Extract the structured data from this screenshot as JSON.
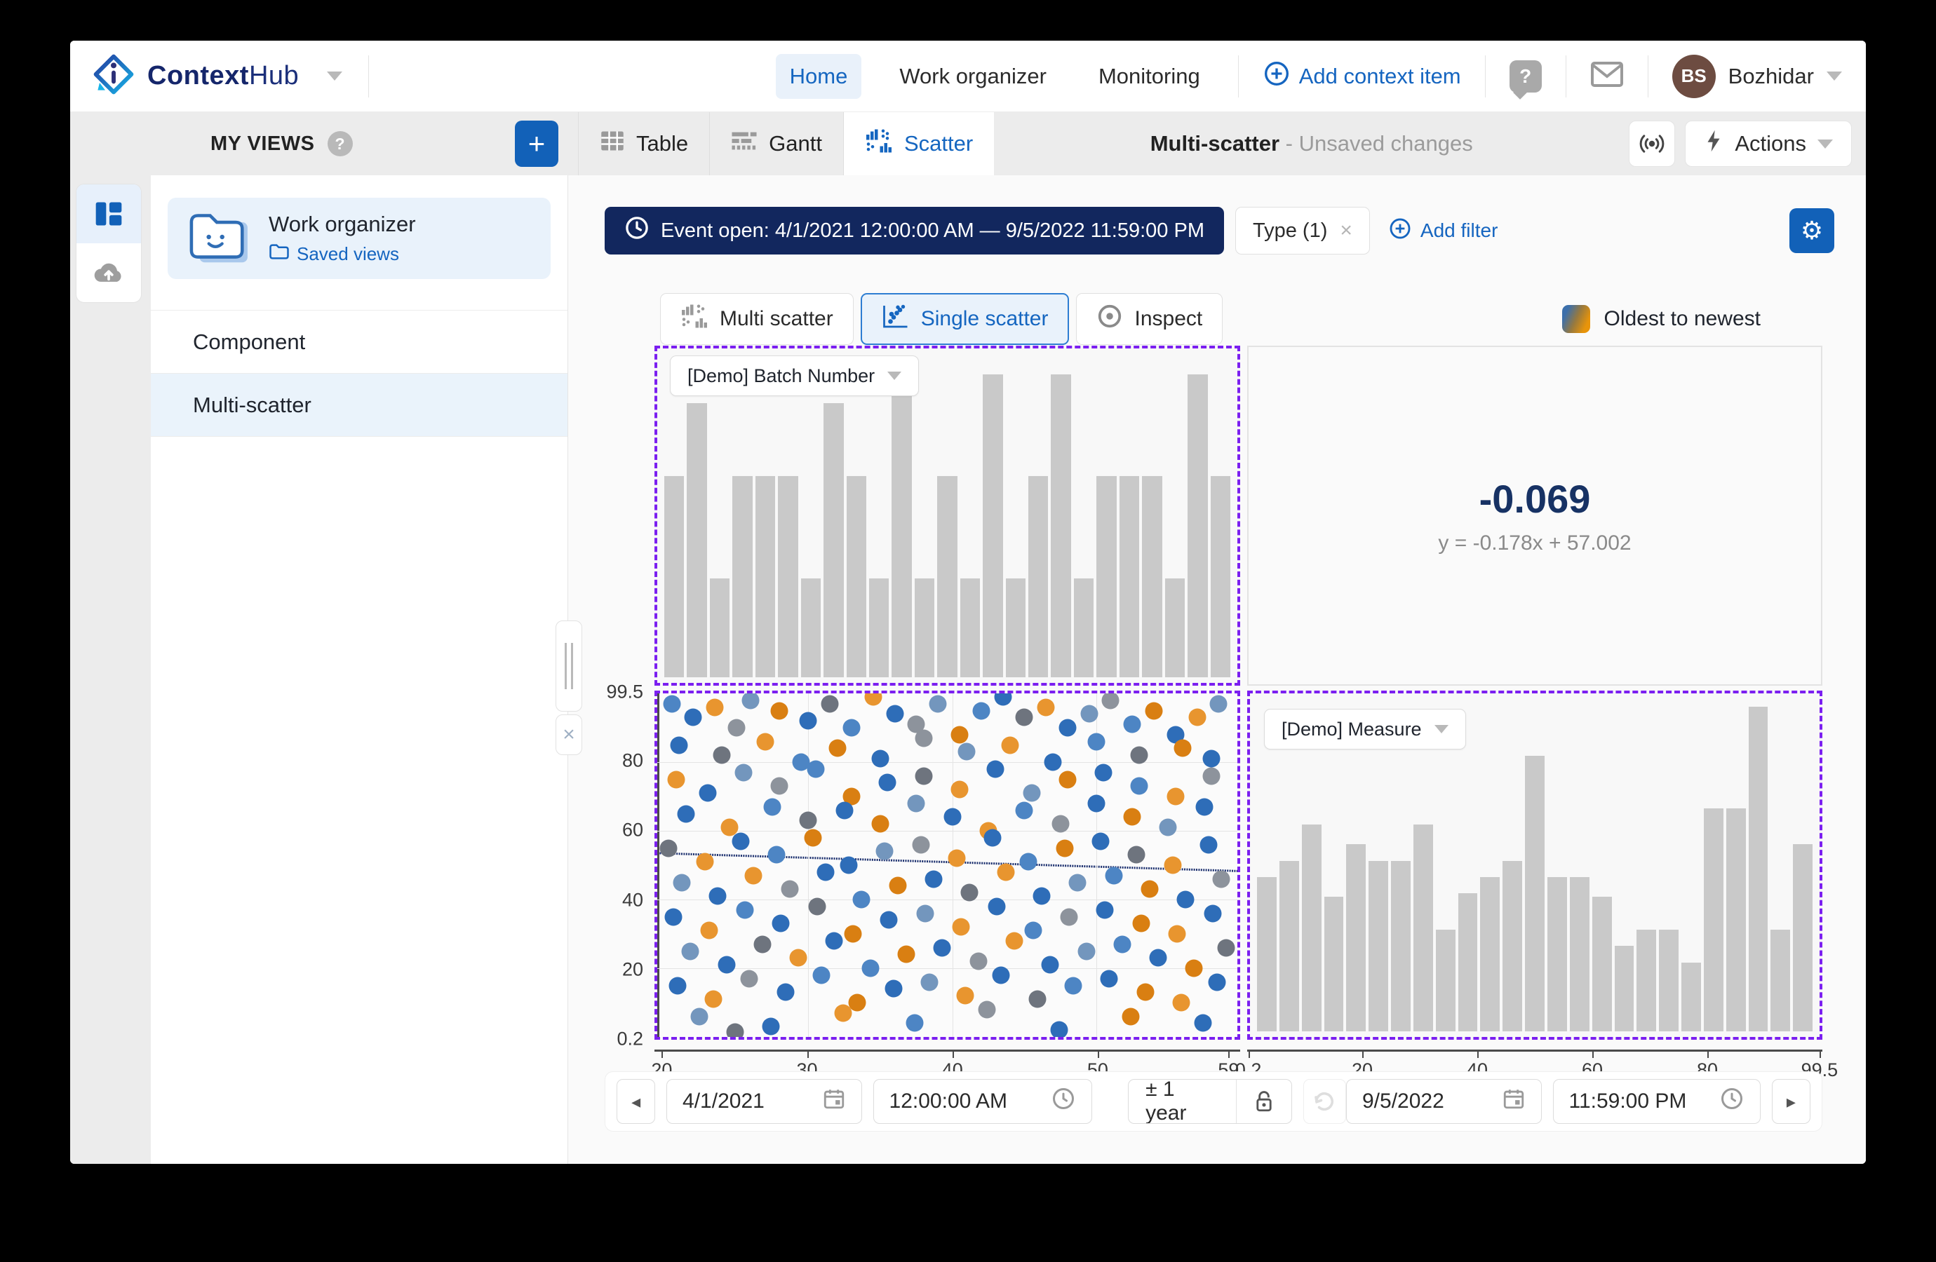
{
  "brand": {
    "name_bold": "Context",
    "name_light": "Hub"
  },
  "nav": {
    "home": "Home",
    "work_organizer": "Work organizer",
    "monitoring": "Monitoring",
    "add_context_item": "Add context item",
    "user_initials": "BS",
    "user_name": "Bozhidar"
  },
  "sidebar": {
    "title": "MY VIEWS",
    "card_title": "Work organizer",
    "card_subtitle": "Saved views",
    "item_component": "Component",
    "item_multi_scatter": "Multi-scatter"
  },
  "tabs": {
    "table": "Table",
    "gantt": "Gantt",
    "scatter": "Scatter"
  },
  "header": {
    "title": "Multi-scatter",
    "status": "- Unsaved changes",
    "actions": "Actions"
  },
  "filters": {
    "event": "Event open: 4/1/2021 12:00:00 AM — 9/5/2022 11:59:00 PM",
    "type_chip": "Type (1)",
    "add_filter": "Add filter"
  },
  "modes": {
    "multi": "Multi scatter",
    "single": "Single scatter",
    "inspect": "Inspect"
  },
  "legend": {
    "label": "Oldest to newest",
    "gradient_from": "#3c6fab",
    "gradient_to": "#e8940a"
  },
  "dropdowns": {
    "batch": "[Demo] Batch Number",
    "measure": "[Demo] Measure"
  },
  "correlation": {
    "value": "-0.069",
    "equation": "y = -0.178x + 57.002"
  },
  "time": {
    "start_date": "4/1/2021",
    "start_time": "12:00:00 AM",
    "range": "± 1 year",
    "end_date": "9/5/2022",
    "end_time": "11:59:00 PM"
  },
  "colors": {
    "accent_blue": "#1565c0",
    "navy": "#12275e",
    "purple_dash": "#7b1ff0",
    "bar_gray": "#c9c9c9"
  },
  "chart_data": [
    {
      "id": "batch-number-histogram",
      "type": "bar",
      "title": "[Demo] Batch Number",
      "bar_color": "#c9c9c9",
      "values": [
        0.63,
        0.86,
        0.31,
        0.63,
        0.63,
        0.63,
        0.31,
        0.86,
        0.63,
        0.31,
        0.95,
        0.31,
        0.63,
        0.31,
        0.95,
        0.31,
        0.63,
        0.95,
        0.31,
        0.63,
        0.63,
        0.63,
        0.31,
        0.95,
        0.63
      ]
    },
    {
      "id": "single-scatter",
      "type": "scatter",
      "xticks": [
        20,
        30,
        40,
        50,
        59
      ],
      "yticks": [
        99.5,
        80,
        60,
        40,
        20,
        0.2
      ],
      "xlim": [
        19.5,
        59.8
      ],
      "ylim": [
        0,
        100
      ],
      "grid": true,
      "trend_line": {
        "x1": 19.5,
        "y1": 53.5,
        "x2": 59.8,
        "y2": 48.3,
        "color": "#1b2f6e"
      },
      "point_colors": [
        "#2e6db8",
        "#4d85c4",
        "#7396bd",
        "#1f5fae",
        "#e8952f",
        "#d97f12",
        "#c98a3a",
        "#8d939c",
        "#6e747e",
        "#a3a7ad"
      ],
      "points": [
        [
          20.5,
          97,
          1
        ],
        [
          22,
          93,
          0
        ],
        [
          23.5,
          96,
          4
        ],
        [
          25,
          90,
          7
        ],
        [
          26,
          98,
          2
        ],
        [
          28,
          95,
          5
        ],
        [
          30,
          92,
          0
        ],
        [
          31.5,
          97,
          8
        ],
        [
          33,
          90,
          1
        ],
        [
          34.5,
          99,
          4
        ],
        [
          36,
          94,
          0
        ],
        [
          37.5,
          91,
          7
        ],
        [
          39,
          97,
          2
        ],
        [
          40.5,
          88,
          5
        ],
        [
          42,
          95,
          1
        ],
        [
          43.5,
          99,
          0
        ],
        [
          45,
          93,
          8
        ],
        [
          46.5,
          96,
          4
        ],
        [
          48,
          90,
          0
        ],
        [
          49.5,
          94,
          2
        ],
        [
          51,
          98,
          7
        ],
        [
          52.5,
          91,
          1
        ],
        [
          54,
          95,
          5
        ],
        [
          55.5,
          88,
          0
        ],
        [
          57,
          93,
          4
        ],
        [
          58.5,
          97,
          2
        ],
        [
          21,
          85,
          0
        ],
        [
          24,
          82,
          8
        ],
        [
          27,
          86,
          4
        ],
        [
          29.5,
          80,
          1
        ],
        [
          32,
          84,
          5
        ],
        [
          35,
          81,
          0
        ],
        [
          38,
          87,
          7
        ],
        [
          41,
          83,
          2
        ],
        [
          44,
          85,
          4
        ],
        [
          47,
          80,
          0
        ],
        [
          50,
          86,
          1
        ],
        [
          53,
          82,
          8
        ],
        [
          56,
          84,
          5
        ],
        [
          58,
          81,
          0
        ],
        [
          20.8,
          75,
          4
        ],
        [
          23,
          71,
          0
        ],
        [
          25.5,
          77,
          2
        ],
        [
          28,
          73,
          7
        ],
        [
          30.5,
          78,
          1
        ],
        [
          33,
          70,
          5
        ],
        [
          35.5,
          74,
          0
        ],
        [
          38,
          76,
          8
        ],
        [
          40.5,
          72,
          4
        ],
        [
          43,
          78,
          0
        ],
        [
          45.5,
          71,
          2
        ],
        [
          48,
          75,
          5
        ],
        [
          50.5,
          77,
          0
        ],
        [
          53,
          73,
          1
        ],
        [
          55.5,
          70,
          4
        ],
        [
          58,
          76,
          7
        ],
        [
          21.5,
          65,
          0
        ],
        [
          24.5,
          61,
          4
        ],
        [
          27.5,
          67,
          1
        ],
        [
          30,
          63,
          8
        ],
        [
          32.5,
          66,
          0
        ],
        [
          35,
          62,
          5
        ],
        [
          37.5,
          68,
          2
        ],
        [
          40,
          64,
          0
        ],
        [
          42.5,
          60,
          4
        ],
        [
          45,
          66,
          1
        ],
        [
          47.5,
          62,
          7
        ],
        [
          50,
          68,
          0
        ],
        [
          52.5,
          64,
          5
        ],
        [
          55,
          61,
          2
        ],
        [
          57.5,
          67,
          0
        ],
        [
          20.3,
          55,
          8
        ],
        [
          22.8,
          51,
          4
        ],
        [
          25.3,
          57,
          0
        ],
        [
          27.8,
          53,
          1
        ],
        [
          30.3,
          58,
          5
        ],
        [
          32.8,
          50,
          0
        ],
        [
          35.3,
          54,
          2
        ],
        [
          37.8,
          56,
          7
        ],
        [
          40.3,
          52,
          4
        ],
        [
          42.8,
          58,
          0
        ],
        [
          45.3,
          51,
          1
        ],
        [
          47.8,
          55,
          5
        ],
        [
          50.3,
          57,
          0
        ],
        [
          52.8,
          53,
          8
        ],
        [
          55.3,
          50,
          4
        ],
        [
          57.8,
          56,
          0
        ],
        [
          21.2,
          45,
          2
        ],
        [
          23.7,
          41,
          0
        ],
        [
          26.2,
          47,
          4
        ],
        [
          28.7,
          43,
          7
        ],
        [
          31.2,
          48,
          0
        ],
        [
          33.7,
          40,
          1
        ],
        [
          36.2,
          44,
          5
        ],
        [
          38.7,
          46,
          0
        ],
        [
          41.2,
          42,
          8
        ],
        [
          43.7,
          48,
          4
        ],
        [
          46.2,
          41,
          0
        ],
        [
          48.7,
          45,
          2
        ],
        [
          51.2,
          47,
          1
        ],
        [
          53.7,
          43,
          5
        ],
        [
          56.2,
          40,
          0
        ],
        [
          58.7,
          46,
          7
        ],
        [
          20.6,
          35,
          0
        ],
        [
          23.1,
          31,
          4
        ],
        [
          25.6,
          37,
          1
        ],
        [
          28.1,
          33,
          0
        ],
        [
          30.6,
          38,
          8
        ],
        [
          33.1,
          30,
          5
        ],
        [
          35.6,
          34,
          0
        ],
        [
          38.1,
          36,
          2
        ],
        [
          40.6,
          32,
          4
        ],
        [
          43.1,
          38,
          0
        ],
        [
          45.6,
          31,
          1
        ],
        [
          48.1,
          35,
          7
        ],
        [
          50.6,
          37,
          0
        ],
        [
          53.1,
          33,
          5
        ],
        [
          55.6,
          30,
          4
        ],
        [
          58.1,
          36,
          0
        ],
        [
          21.8,
          25,
          2
        ],
        [
          24.3,
          21,
          0
        ],
        [
          26.8,
          27,
          8
        ],
        [
          29.3,
          23,
          4
        ],
        [
          31.8,
          28,
          0
        ],
        [
          34.3,
          20,
          1
        ],
        [
          36.8,
          24,
          5
        ],
        [
          39.3,
          26,
          0
        ],
        [
          41.8,
          22,
          7
        ],
        [
          44.3,
          28,
          4
        ],
        [
          46.8,
          21,
          0
        ],
        [
          49.3,
          25,
          2
        ],
        [
          51.8,
          27,
          1
        ],
        [
          54.3,
          23,
          0
        ],
        [
          56.8,
          20,
          5
        ],
        [
          59,
          26,
          8
        ],
        [
          20.9,
          15,
          0
        ],
        [
          23.4,
          11,
          4
        ],
        [
          25.9,
          17,
          7
        ],
        [
          28.4,
          13,
          0
        ],
        [
          30.9,
          18,
          1
        ],
        [
          33.4,
          10,
          5
        ],
        [
          35.9,
          14,
          0
        ],
        [
          38.4,
          16,
          2
        ],
        [
          40.9,
          12,
          4
        ],
        [
          43.4,
          18,
          0
        ],
        [
          45.9,
          11,
          8
        ],
        [
          48.4,
          15,
          1
        ],
        [
          50.9,
          17,
          0
        ],
        [
          53.4,
          13,
          5
        ],
        [
          55.9,
          10,
          4
        ],
        [
          58.4,
          16,
          0
        ],
        [
          22.4,
          6,
          2
        ],
        [
          27.4,
          3,
          0
        ],
        [
          32.4,
          7,
          4
        ],
        [
          37.4,
          4,
          1
        ],
        [
          42.4,
          8,
          7
        ],
        [
          47.4,
          2,
          0
        ],
        [
          52.4,
          6,
          5
        ],
        [
          57.4,
          4,
          0
        ],
        [
          24.9,
          1.5,
          8
        ]
      ]
    },
    {
      "id": "measure-histogram",
      "type": "bar",
      "title": "[Demo] Measure",
      "bar_color": "#c9c9c9",
      "xticks": [
        0.2,
        20,
        40,
        60,
        80,
        99.5
      ],
      "xlim": [
        0,
        100
      ],
      "values": [
        0.47,
        0.52,
        0.63,
        0.41,
        0.57,
        0.52,
        0.52,
        0.63,
        0.31,
        0.42,
        0.47,
        0.52,
        0.84,
        0.47,
        0.47,
        0.41,
        0.26,
        0.31,
        0.31,
        0.21,
        0.68,
        0.68,
        0.99,
        0.31,
        0.57
      ]
    }
  ]
}
